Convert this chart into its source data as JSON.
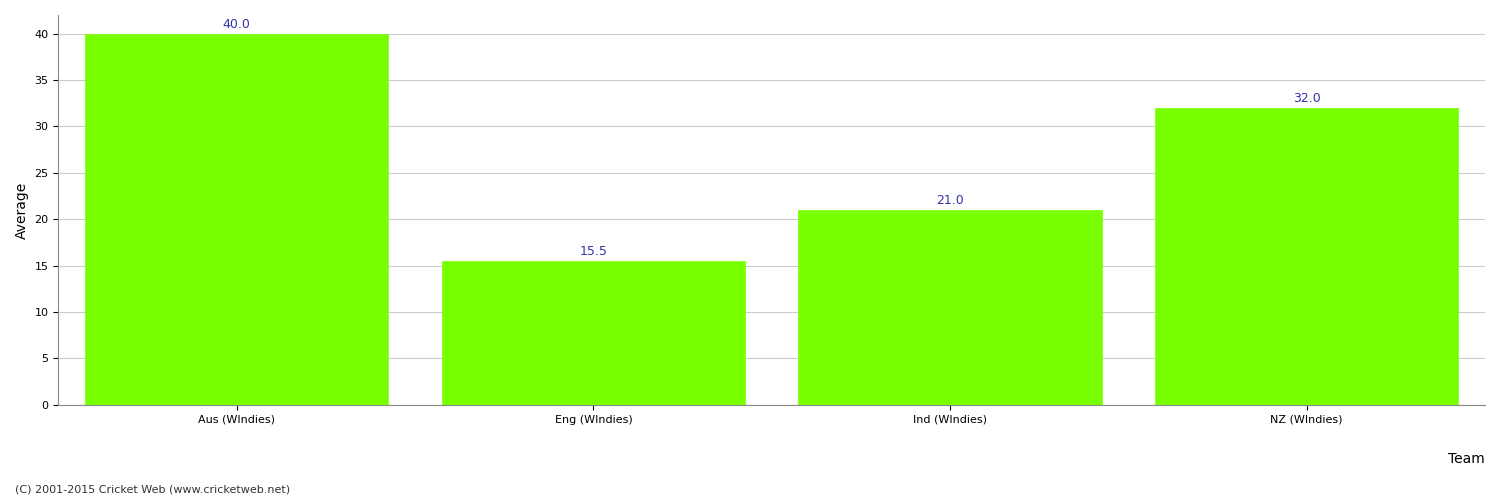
{
  "categories": [
    "Aus (WIndies)",
    "Eng (WIndies)",
    "Ind (WIndies)",
    "NZ (WIndies)"
  ],
  "values": [
    40.0,
    15.5,
    21.0,
    32.0
  ],
  "bar_color": "#77ff00",
  "bar_edge_color": "#77ff00",
  "value_label_color": "#3333aa",
  "value_label_fontsize": 9,
  "xlabel": "Team",
  "ylabel": "Average",
  "ylim": [
    0,
    42
  ],
  "yticks": [
    0,
    5,
    10,
    15,
    20,
    25,
    30,
    35,
    40
  ],
  "background_color": "#ffffff",
  "grid_color": "#cccccc",
  "axis_label_fontsize": 10,
  "tick_fontsize": 8,
  "footer": "(C) 2001-2015 Cricket Web (www.cricketweb.net)",
  "footer_fontsize": 8,
  "footer_color": "#333333"
}
